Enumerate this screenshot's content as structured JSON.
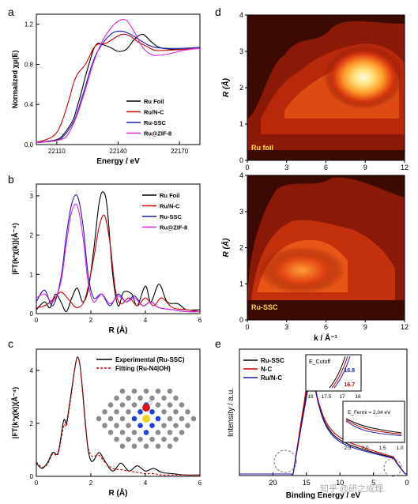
{
  "panels": {
    "a": {
      "letter": "a"
    },
    "b": {
      "letter": "b"
    },
    "c": {
      "letter": "c"
    },
    "d": {
      "letter": "d"
    },
    "e": {
      "letter": "e"
    }
  },
  "chart_data": [
    {
      "panel": "a",
      "type": "line",
      "xlabel": "Energy / eV",
      "ylabel": "Normalized χμ(E)",
      "xlim": [
        22100,
        22180
      ],
      "ylim": [
        0,
        1.3
      ],
      "xticks": [
        "22110",
        "22140",
        "22170"
      ],
      "yticks": [
        "0.0",
        "0.4",
        "0.8",
        "1.2"
      ],
      "legend_position": "lower-right",
      "series": [
        {
          "name": "Ru Foil",
          "color": "#000000",
          "x": [
            22100,
            22110,
            22114,
            22118,
            22120,
            22122,
            22124,
            22126,
            22128,
            22130,
            22132,
            22136,
            22140,
            22144,
            22148,
            22152,
            22156,
            22160,
            22166,
            22172,
            22180
          ],
          "y": [
            0.02,
            0.05,
            0.12,
            0.25,
            0.38,
            0.52,
            0.68,
            0.82,
            0.95,
            1.01,
            1.0,
            0.97,
            0.93,
            0.95,
            1.05,
            1.1,
            1.03,
            0.97,
            0.95,
            0.95,
            0.96
          ]
        },
        {
          "name": "Ru/N-C",
          "color": "#cc0000",
          "x": [
            22100,
            22108,
            22112,
            22116,
            22118,
            22120,
            22122,
            22124,
            22126,
            22128,
            22130,
            22134,
            22138,
            22142,
            22146,
            22150,
            22154,
            22158,
            22164,
            22172,
            22180
          ],
          "y": [
            0.02,
            0.08,
            0.2,
            0.45,
            0.6,
            0.7,
            0.75,
            0.8,
            0.88,
            0.96,
            1.0,
            1.01,
            1.06,
            1.1,
            1.08,
            1.02,
            0.98,
            0.94,
            0.94,
            0.95,
            0.96
          ]
        },
        {
          "name": "Ru-SSC",
          "color": "#1a1ab0",
          "x": [
            22100,
            22110,
            22114,
            22118,
            22120,
            22122,
            22124,
            22126,
            22128,
            22130,
            22134,
            22138,
            22142,
            22146,
            22150,
            22154,
            22158,
            22164,
            22172,
            22180
          ],
          "y": [
            0.02,
            0.04,
            0.1,
            0.22,
            0.32,
            0.45,
            0.58,
            0.72,
            0.84,
            0.93,
            1.05,
            1.12,
            1.13,
            1.1,
            1.05,
            1.0,
            0.97,
            0.96,
            0.96,
            0.97
          ]
        },
        {
          "name": "Ru@ZIF-8",
          "color": "#e020e0",
          "x": [
            22100,
            22112,
            22116,
            22120,
            22124,
            22128,
            22132,
            22136,
            22140,
            22144,
            22148,
            22152,
            22156,
            22160,
            22166,
            22172,
            22180
          ],
          "y": [
            0.02,
            0.05,
            0.12,
            0.3,
            0.55,
            0.82,
            1.02,
            1.15,
            1.23,
            1.24,
            1.12,
            0.97,
            0.9,
            0.89,
            0.91,
            0.94,
            0.96
          ]
        }
      ]
    },
    {
      "panel": "b",
      "type": "line",
      "xlabel": "R (Å)",
      "ylabel": "|FT(k³χ(k))(Å⁻⁴)",
      "xlim": [
        0,
        6
      ],
      "ylim": [
        0,
        3.3
      ],
      "xticks": [
        "0",
        "2",
        "4",
        "6"
      ],
      "yticks": [
        "0",
        "1",
        "2",
        "3"
      ],
      "legend_position": "top-right",
      "series": [
        {
          "name": "Ru Foil",
          "color": "#000000",
          "x": [
            0,
            0.3,
            0.5,
            0.7,
            0.9,
            1.1,
            1.3,
            1.5,
            1.7,
            1.9,
            2.1,
            2.3,
            2.45,
            2.6,
            2.8,
            3.0,
            3.2,
            3.5,
            3.7,
            4.0,
            4.2,
            4.5,
            4.8,
            5.2,
            5.5,
            6.0
          ],
          "y": [
            0.1,
            0.3,
            0.15,
            0.5,
            0.3,
            0.05,
            0.4,
            0.65,
            0.3,
            0.6,
            1.6,
            2.8,
            3.1,
            2.7,
            1.0,
            0.2,
            0.55,
            0.5,
            0.2,
            0.7,
            0.3,
            0.75,
            0.3,
            0.25,
            0.1,
            0.1
          ]
        },
        {
          "name": "Ru/N-C",
          "color": "#cc0000",
          "x": [
            0,
            0.3,
            0.6,
            0.9,
            1.2,
            1.5,
            1.8,
            2.1,
            2.3,
            2.5,
            2.7,
            2.9,
            3.1,
            3.4,
            3.7,
            4.0,
            4.3,
            4.6,
            5.0,
            5.5,
            6.0
          ],
          "y": [
            0.15,
            0.2,
            0.35,
            0.55,
            0.35,
            0.15,
            0.4,
            1.4,
            2.2,
            2.5,
            1.8,
            0.6,
            0.25,
            0.4,
            0.2,
            0.4,
            0.2,
            0.4,
            0.15,
            0.1,
            0.05
          ]
        },
        {
          "name": "Ru-SSC",
          "color": "#1a1ab0",
          "x": [
            0,
            0.3,
            0.6,
            0.9,
            1.1,
            1.3,
            1.5,
            1.7,
            1.9,
            2.1,
            2.4,
            2.7,
            3.0,
            3.3,
            3.6,
            3.9,
            4.2,
            4.5,
            5.0,
            5.5,
            6.0
          ],
          "y": [
            0.3,
            0.6,
            0.2,
            0.9,
            2.0,
            2.8,
            3.0,
            2.3,
            1.0,
            0.4,
            0.5,
            0.2,
            0.5,
            0.3,
            0.45,
            0.2,
            0.3,
            0.15,
            0.1,
            0.05,
            0.05
          ]
        },
        {
          "name": "Ru@ZIF-8",
          "color": "#e020e0",
          "x": [
            0,
            0.3,
            0.6,
            0.9,
            1.1,
            1.3,
            1.5,
            1.7,
            1.9,
            2.1,
            2.4,
            2.7,
            3.0,
            3.3,
            3.6,
            3.9,
            4.2,
            4.5,
            5.0,
            5.5,
            6.0
          ],
          "y": [
            0.4,
            0.5,
            0.3,
            0.8,
            1.8,
            2.6,
            2.75,
            2.0,
            0.8,
            0.3,
            0.5,
            0.25,
            0.45,
            0.3,
            0.4,
            0.2,
            0.3,
            0.15,
            0.1,
            0.05,
            0.05
          ]
        }
      ]
    },
    {
      "panel": "c",
      "type": "line",
      "xlabel": "R (Å)",
      "ylabel": "|FT(k³χ(k))(Å⁻⁴)",
      "xlim": [
        0,
        6
      ],
      "ylim": [
        0,
        4.8
      ],
      "xticks": [
        "0",
        "2",
        "4",
        "6"
      ],
      "yticks": [
        "0",
        "2",
        "4"
      ],
      "legend_position": "top-right",
      "series": [
        {
          "name": "Experimental (Ru-SSC)",
          "color": "#000000",
          "dash": false,
          "x": [
            0,
            0.2,
            0.4,
            0.6,
            0.8,
            1.0,
            1.1,
            1.2,
            1.3,
            1.4,
            1.5,
            1.6,
            1.7,
            1.8,
            1.9,
            2.0,
            2.1,
            2.3,
            2.5,
            2.8,
            3.1,
            3.4,
            3.7,
            4.0,
            4.3,
            4.6,
            5.0,
            5.5,
            6.0
          ],
          "y": [
            0.5,
            0.3,
            0.5,
            0.9,
            0.9,
            2.1,
            2.0,
            2.6,
            3.3,
            4.0,
            4.5,
            4.2,
            3.2,
            2.0,
            1.0,
            0.6,
            0.6,
            0.9,
            0.6,
            0.2,
            0.5,
            0.2,
            0.4,
            0.2,
            0.3,
            0.15,
            0.1,
            0.05,
            0.05
          ]
        },
        {
          "name": "Fitting (Ru-N4|OH)",
          "color": "#cc0000",
          "dash": true,
          "x": [
            0,
            0.2,
            0.4,
            0.6,
            0.8,
            1.0,
            1.1,
            1.2,
            1.3,
            1.4,
            1.5,
            1.6,
            1.7,
            1.8,
            1.9,
            2.0,
            2.1,
            2.3,
            2.5,
            2.8,
            3.1,
            3.4,
            3.7,
            4.0,
            4.3,
            4.6,
            5.0,
            5.5,
            6.0
          ],
          "y": [
            0.55,
            0.35,
            0.45,
            0.85,
            0.85,
            1.9,
            1.9,
            2.5,
            3.2,
            4.0,
            4.5,
            4.2,
            3.1,
            1.9,
            1.1,
            0.8,
            0.75,
            0.8,
            0.55,
            0.3,
            0.25,
            0.2,
            0.15,
            0.1,
            0.1,
            0.05,
            0.05,
            0.05,
            0.05
          ]
        }
      ]
    },
    {
      "panel": "d",
      "type": "heatmap",
      "xlabel": "k / Å⁻¹",
      "ylabel": "R (Å)",
      "xlim": [
        0,
        12
      ],
      "ylim": [
        0,
        4
      ],
      "xticks": [
        "0",
        "3",
        "6",
        "9",
        "12"
      ],
      "yticks": [
        "0",
        "1",
        "2",
        "3",
        "4"
      ],
      "subplots": [
        {
          "label": "Ru foil",
          "peaks": [
            {
              "k": 9.3,
              "R": 2.3,
              "amp": 1.0
            }
          ]
        },
        {
          "label": "Ru-SSC",
          "peaks": [
            {
              "k": 4.5,
              "R": 1.2,
              "amp": 1.0
            }
          ]
        }
      ]
    },
    {
      "panel": "e",
      "type": "line",
      "xlabel": "Binding Energy / eV",
      "ylabel": "Intensity / a.u.",
      "xlim": [
        25,
        0
      ],
      "xticks": [
        "20",
        "15",
        "10",
        "5",
        "0"
      ],
      "legend_position": "top-left",
      "series": [
        {
          "name": "Ru-SSC",
          "color": "#000000"
        },
        {
          "name": "N-C",
          "color": "#cc0000"
        },
        {
          "name": "Ru/N-C",
          "color": "#1a1ab0"
        }
      ],
      "insets": [
        {
          "label": "E_Cutoff",
          "xticks": [
            "18",
            "17.5",
            "17",
            "16"
          ],
          "values": [
            "16.8",
            "16.7"
          ]
        },
        {
          "label": "E_Fermi = 2.04 eV",
          "xticks": [
            "2.5",
            "2.0",
            "1.5",
            "1.0"
          ]
        }
      ]
    }
  ],
  "watermark": "知乎 @研之成理"
}
